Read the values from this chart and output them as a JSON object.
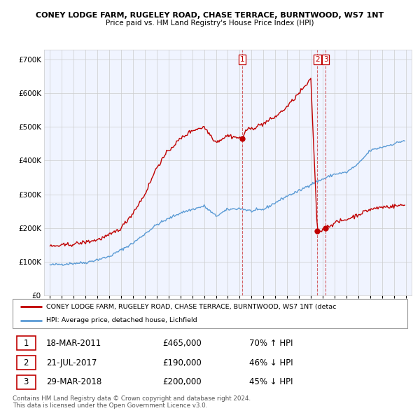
{
  "title1": "CONEY LODGE FARM, RUGELEY ROAD, CHASE TERRACE, BURNTWOOD, WS7 1NT",
  "title2": "Price paid vs. HM Land Registry's House Price Index (HPI)",
  "red_label": "CONEY LODGE FARM, RUGELEY ROAD, CHASE TERRACE, BURNTWOOD, WS7 1NT (detac",
  "blue_label": "HPI: Average price, detached house, Lichfield",
  "transactions": [
    {
      "num": 1,
      "date": "18-MAR-2011",
      "price": 465000,
      "pct": "70%",
      "dir": "↑",
      "x": 2011.21
    },
    {
      "num": 2,
      "date": "21-JUL-2017",
      "price": 190000,
      "pct": "46%",
      "dir": "↓",
      "x": 2017.55
    },
    {
      "num": 3,
      "date": "29-MAR-2018",
      "price": 200000,
      "pct": "45%",
      "dir": "↓",
      "x": 2018.24
    }
  ],
  "footer1": "Contains HM Land Registry data © Crown copyright and database right 2024.",
  "footer2": "This data is licensed under the Open Government Licence v3.0.",
  "ylim": [
    0,
    730000
  ],
  "xlim": [
    1994.5,
    2025.5
  ],
  "red_color": "#C00000",
  "blue_color": "#5B9BD5",
  "grid_color": "#CCCCCC",
  "hpi_anchors_x": [
    1995.0,
    1997.0,
    1998.0,
    2000.0,
    2002.0,
    2004.0,
    2006.0,
    2008.0,
    2009.0,
    2010.0,
    2011.0,
    2012.0,
    2013.0,
    2014.0,
    2015.0,
    2016.0,
    2017.0,
    2018.0,
    2019.0,
    2020.0,
    2021.0,
    2022.0,
    2023.0,
    2024.0,
    2024.9
  ],
  "hpi_anchors_y": [
    90000,
    95000,
    97000,
    115000,
    155000,
    210000,
    245000,
    265000,
    235000,
    255000,
    258000,
    250000,
    255000,
    275000,
    295000,
    310000,
    330000,
    345000,
    360000,
    365000,
    390000,
    430000,
    440000,
    450000,
    460000
  ],
  "red_anchors_x": [
    1995.0,
    1996.0,
    1997.0,
    1998.0,
    1999.0,
    2000.0,
    2001.0,
    2002.0,
    2003.0,
    2004.0,
    2005.0,
    2006.0,
    2007.0,
    2008.0,
    2009.0,
    2010.0,
    2011.21,
    2011.5,
    2012.0,
    2013.0,
    2014.0,
    2015.0,
    2016.0,
    2017.0,
    2017.55,
    2018.0,
    2018.24,
    2018.5,
    2019.0,
    2020.0,
    2021.0,
    2022.0,
    2023.0,
    2024.0,
    2024.9
  ],
  "red_anchors_y": [
    145000,
    148000,
    152000,
    158000,
    165000,
    178000,
    200000,
    245000,
    300000,
    380000,
    430000,
    465000,
    490000,
    500000,
    455000,
    475000,
    465000,
    490000,
    495000,
    510000,
    530000,
    560000,
    600000,
    640000,
    190000,
    195000,
    200000,
    205000,
    215000,
    225000,
    240000,
    255000,
    262000,
    265000,
    268000
  ]
}
